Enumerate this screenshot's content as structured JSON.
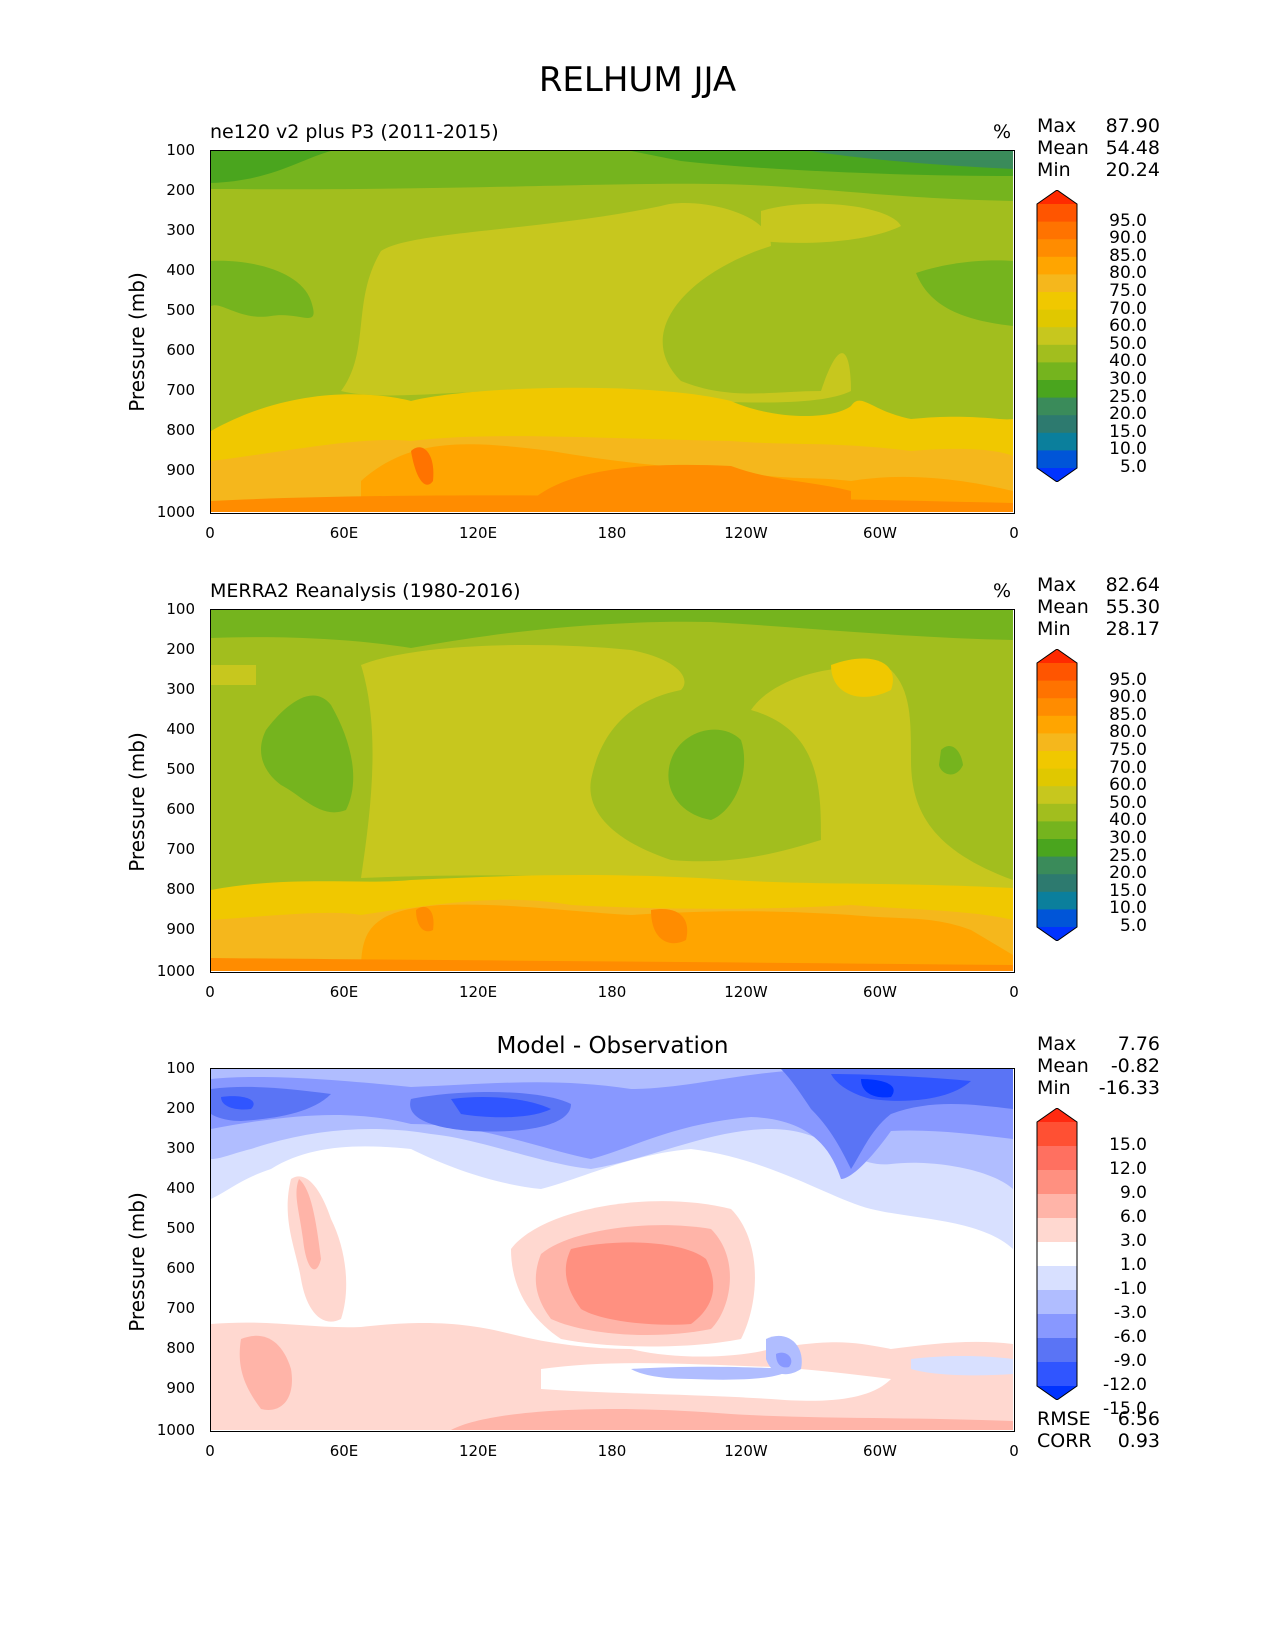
{
  "chart_data": [
    {
      "type": "contour",
      "title": "ne120 v2 plus P3 (2011-2015)",
      "units": "%",
      "ylabel": "Pressure (mb)",
      "yticks": [
        "100",
        "200",
        "300",
        "400",
        "500",
        "600",
        "700",
        "800",
        "900",
        "1000"
      ],
      "xticks": [
        "0",
        "60E",
        "120E",
        "180",
        "120W",
        "60W",
        "0"
      ],
      "stats": {
        "max_label": "Max",
        "max": "87.90",
        "mean_label": "Mean",
        "mean": "54.48",
        "min_label": "Min",
        "min": "20.24"
      },
      "colorbar_levels": [
        "95.0",
        "90.0",
        "85.0",
        "80.0",
        "75.0",
        "70.0",
        "60.0",
        "50.0",
        "40.0",
        "30.0",
        "25.0",
        "20.0",
        "15.0",
        "10.0",
        "5.0"
      ],
      "colorbar_colors": [
        "#ff2a00",
        "#ff5500",
        "#ff7300",
        "#ff8c00",
        "#ffa500",
        "#f5b71c",
        "#f0c800",
        "#e0c800",
        "#c7c71e",
        "#a2be1e",
        "#75b41e",
        "#4aa51e",
        "#3a8b5a",
        "#2d7a6f",
        "#0b7f9c",
        "#0055d8",
        "#0033ff"
      ]
    },
    {
      "type": "contour",
      "title": "MERRA2 Reanalysis (1980-2016)",
      "units": "%",
      "ylabel": "Pressure (mb)",
      "yticks": [
        "100",
        "200",
        "300",
        "400",
        "500",
        "600",
        "700",
        "800",
        "900",
        "1000"
      ],
      "xticks": [
        "0",
        "60E",
        "120E",
        "180",
        "120W",
        "60W",
        "0"
      ],
      "stats": {
        "max_label": "Max",
        "max": "82.64",
        "mean_label": "Mean",
        "mean": "55.30",
        "min_label": "Min",
        "min": "28.17"
      },
      "colorbar_levels": [
        "95.0",
        "90.0",
        "85.0",
        "80.0",
        "75.0",
        "70.0",
        "60.0",
        "50.0",
        "40.0",
        "30.0",
        "25.0",
        "20.0",
        "15.0",
        "10.0",
        "5.0"
      ],
      "colorbar_colors": [
        "#ff2a00",
        "#ff5500",
        "#ff7300",
        "#ff8c00",
        "#ffa500",
        "#f5b71c",
        "#f0c800",
        "#e0c800",
        "#c7c71e",
        "#a2be1e",
        "#75b41e",
        "#4aa51e",
        "#3a8b5a",
        "#2d7a6f",
        "#0b7f9c",
        "#0055d8",
        "#0033ff"
      ]
    },
    {
      "type": "contour",
      "title": "Model - Observation",
      "units": "",
      "ylabel": "Pressure (mb)",
      "yticks": [
        "100",
        "200",
        "300",
        "400",
        "500",
        "600",
        "700",
        "800",
        "900",
        "1000"
      ],
      "xticks": [
        "0",
        "60E",
        "120E",
        "180",
        "120W",
        "60W",
        "0"
      ],
      "stats": {
        "max_label": "Max",
        "max": "7.76",
        "mean_label": "Mean",
        "mean": "-0.82",
        "min_label": "Min",
        "min": "-16.33"
      },
      "extra_stats": {
        "rmse_label": "RMSE",
        "rmse": "6.56",
        "corr_label": "CORR",
        "corr": "0.93"
      },
      "colorbar_levels": [
        "15.0",
        "12.0",
        "9.0",
        "6.0",
        "3.0",
        "1.0",
        "-1.0",
        "-3.0",
        "-6.0",
        "-9.0",
        "-12.0",
        "-15.0"
      ],
      "colorbar_colors": [
        "#ff2a10",
        "#ff5033",
        "#ff7060",
        "#ff9080",
        "#ffb4a8",
        "#ffd8d0",
        "#ffffff",
        "#d8e0ff",
        "#b0bdff",
        "#8898ff",
        "#5a74f5",
        "#3055ff",
        "#0033ff"
      ]
    }
  ],
  "figure_title": "RELHUM JJA"
}
